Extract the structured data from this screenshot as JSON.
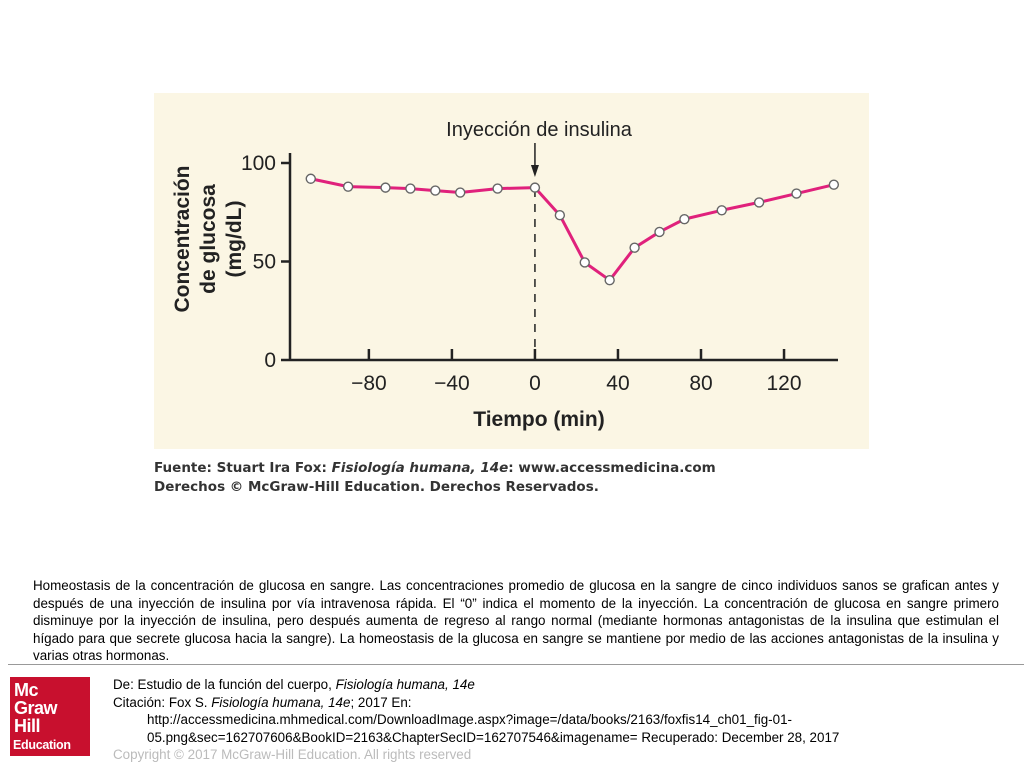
{
  "figure": {
    "chart_data": {
      "type": "line",
      "annotation": "Inyección de insulina",
      "ylabel_lines": [
        "Concentración",
        "de glucosa",
        "(mg/dL)"
      ],
      "xlabel": "Tiempo (min)",
      "xlim": [
        -118,
        146
      ],
      "ylim": [
        0,
        100
      ],
      "x_ticks": [
        -80,
        -40,
        0,
        40,
        80,
        120
      ],
      "x_tick_labels": [
        "−80",
        "−40",
        "0",
        "40",
        "80",
        "120"
      ],
      "y_ticks": [
        0,
        50,
        100
      ],
      "y_tick_labels": [
        "0",
        "50",
        "100"
      ],
      "event_x": 0,
      "grid": false,
      "line_color": "#e0217c",
      "series": [
        {
          "x": [
            -108,
            -90,
            -72,
            -60,
            -48,
            -36,
            -18,
            0,
            12,
            24,
            36,
            48,
            60,
            72,
            90,
            108,
            126,
            144
          ],
          "y": [
            92,
            88,
            87.5,
            87,
            86,
            85,
            87,
            87.5,
            73.5,
            49.5,
            40.5,
            57,
            65,
            71.5,
            76,
            80,
            84.5,
            89
          ]
        }
      ]
    },
    "source_line1_prefix": "Fuente: Stuart Ira Fox: ",
    "source_line1_book": "Fisiología humana, 14e",
    "source_line1_suffix": ": www.accessmedicina.com",
    "source_line2": "Derechos © McGraw-Hill Education. Derechos Reservados."
  },
  "caption": " Homeostasis de la concentración de glucosa en sangre. Las concentraciones promedio de glucosa en la sangre de cinco individuos sanos se grafican antes y después de una inyección de insulina por vía intravenosa rápida. El “0” indica el momento de la inyección. La concentración de glucosa en sangre primero disminuye por la inyección de insulina, pero después aumenta de regreso al rango normal (mediante hormonas antagonistas de la insulina que estimulan el hígado para que secrete glucosa hacia la sangre). La homeostasis de la glucosa en sangre se mantiene por medio de las acciones antagonistas de la insulina y varias otras hormonas.",
  "logo": {
    "line1": "Mc",
    "line2": "Graw",
    "line3": "Hill",
    "line4": "Education",
    "color": "#c8102e"
  },
  "credits": {
    "de_prefix": "De: Estudio de la función del cuerpo, ",
    "de_book": "Fisiología humana, 14e",
    "citation_prefix": "Citación: Fox S. ",
    "citation_book": "Fisiología humana, 14e",
    "citation_suffix": "; 2017 En:",
    "url_line1": "http://accessmedicina.mhmedical.com/DownloadImage.aspx?image=/data/books/2163/foxfis14_ch01_fig-01-",
    "url_line2": "05.png&sec=162707606&BookID=2163&ChapterSecID=162707546&imagename= Recuperado: December 28, 2017",
    "copyright": "Copyright © 2017 McGraw-Hill Education. All rights reserved"
  }
}
